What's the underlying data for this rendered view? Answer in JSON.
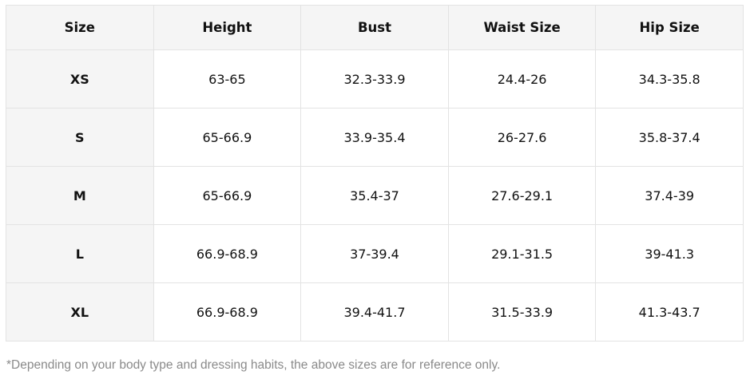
{
  "table": {
    "headers": [
      "Size",
      "Height",
      "Bust",
      "Waist Size",
      "Hip Size"
    ],
    "rows": [
      [
        "XS",
        "63-65",
        "32.3-33.9",
        "24.4-26",
        "34.3-35.8"
      ],
      [
        "S",
        "65-66.9",
        "33.9-35.4",
        "26-27.6",
        "35.8-37.4"
      ],
      [
        "M",
        "65-66.9",
        "35.4-37",
        "27.6-29.1",
        "37.4-39"
      ],
      [
        "L",
        "66.9-68.9",
        "37-39.4",
        "29.1-31.5",
        "39-41.3"
      ],
      [
        "XL",
        "66.9-68.9",
        "39.4-41.7",
        "31.5-33.9",
        "41.3-43.7"
      ]
    ]
  },
  "note": "*Depending on your body type and dressing habits, the above sizes are for reference only."
}
